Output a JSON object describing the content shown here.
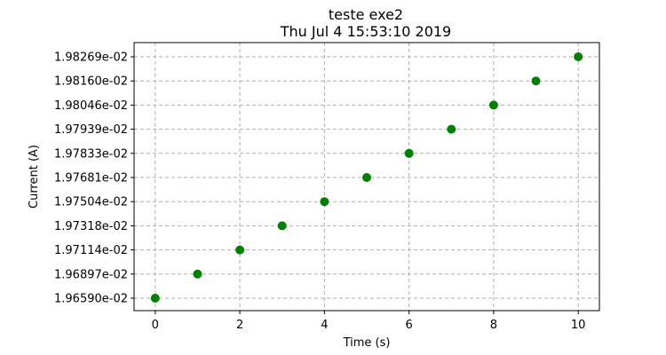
{
  "chart_data": {
    "type": "scatter",
    "title": "teste exe2",
    "subtitle": "Thu Jul  4 15:53:10 2019",
    "xlabel": "Time (s)",
    "ylabel": "Current (A)",
    "x": [
      0,
      1,
      2,
      3,
      4,
      5,
      6,
      7,
      8,
      9,
      10
    ],
    "y": [
      0.019659,
      0.0196897,
      0.0197114,
      0.0197318,
      0.0197504,
      0.0197681,
      0.0197833,
      0.0197939,
      0.0198046,
      0.019816,
      0.0198269
    ],
    "x_ticks": [
      "0",
      "2",
      "4",
      "6",
      "8",
      "10"
    ],
    "y_tick_labels": [
      "1.96590e-02",
      "1.96897e-02",
      "1.97114e-02",
      "1.97318e-02",
      "1.97504e-02",
      "1.97681e-02",
      "1.97833e-02",
      "1.97939e-02",
      "1.98046e-02",
      "1.98160e-02",
      "1.98269e-02"
    ],
    "xlim": [
      -0.5,
      10.5
    ],
    "grid": true,
    "marker_color": "#008000"
  }
}
